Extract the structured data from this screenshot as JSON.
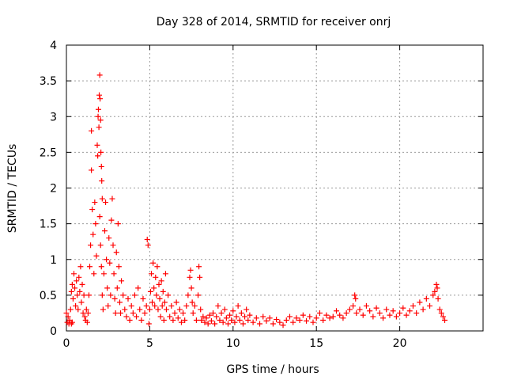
{
  "chart_data": {
    "type": "scatter",
    "title": "Day 328 of 2014, SRMTID for receiver onrj",
    "xlabel": "GPS time / hours",
    "ylabel": "SRMTID / TECUs",
    "xlim": [
      0,
      25
    ],
    "ylim": [
      0,
      4
    ],
    "xticks": [
      0,
      5,
      10,
      15,
      20
    ],
    "xtick_labels": [
      "0",
      "5",
      "10",
      "15",
      "20"
    ],
    "yticks": [
      0,
      0.5,
      1,
      1.5,
      2,
      2.5,
      3,
      3.5,
      4
    ],
    "ytick_labels": [
      "0",
      "0.5",
      "1",
      "1.5",
      "2",
      "2.5",
      "3",
      "3.5",
      "4"
    ],
    "grid": true,
    "marker": "+",
    "series": [
      {
        "name": "SRMTID",
        "color": "#ff0000",
        "points": [
          [
            0.0,
            0.25
          ],
          [
            0.05,
            0.12
          ],
          [
            0.1,
            0.2
          ],
          [
            0.15,
            0.1
          ],
          [
            0.2,
            0.15
          ],
          [
            0.25,
            0.3
          ],
          [
            0.3,
            0.1
          ],
          [
            0.35,
            0.12
          ],
          [
            0.3,
            0.55
          ],
          [
            0.35,
            0.65
          ],
          [
            0.4,
            0.45
          ],
          [
            0.45,
            0.8
          ],
          [
            0.5,
            0.6
          ],
          [
            0.55,
            0.35
          ],
          [
            0.6,
            0.7
          ],
          [
            0.65,
            0.5
          ],
          [
            0.7,
            0.3
          ],
          [
            0.75,
            0.75
          ],
          [
            0.8,
            0.55
          ],
          [
            0.85,
            0.9
          ],
          [
            0.9,
            0.4
          ],
          [
            0.95,
            0.65
          ],
          [
            1.0,
            0.25
          ],
          [
            1.05,
            0.5
          ],
          [
            1.1,
            0.2
          ],
          [
            1.15,
            0.15
          ],
          [
            1.2,
            0.3
          ],
          [
            1.25,
            0.12
          ],
          [
            1.3,
            0.25
          ],
          [
            1.35,
            0.5
          ],
          [
            1.4,
            0.9
          ],
          [
            1.45,
            1.2
          ],
          [
            1.5,
            2.8
          ],
          [
            1.5,
            2.25
          ],
          [
            1.55,
            1.7
          ],
          [
            1.6,
            1.35
          ],
          [
            1.65,
            0.8
          ],
          [
            1.7,
            1.8
          ],
          [
            1.75,
            1.5
          ],
          [
            1.8,
            1.05
          ],
          [
            1.85,
            2.6
          ],
          [
            1.88,
            2.45
          ],
          [
            1.9,
            3.0
          ],
          [
            1.92,
            3.1
          ],
          [
            1.95,
            2.85
          ],
          [
            1.97,
            3.3
          ],
          [
            2.0,
            3.58
          ],
          [
            2.02,
            3.25
          ],
          [
            2.05,
            2.95
          ],
          [
            2.07,
            2.5
          ],
          [
            2.1,
            2.3
          ],
          [
            2.12,
            2.1
          ],
          [
            2.15,
            1.85
          ],
          [
            2.0,
            1.6
          ],
          [
            2.05,
            1.2
          ],
          [
            2.1,
            0.9
          ],
          [
            2.15,
            0.5
          ],
          [
            2.2,
            0.3
          ],
          [
            2.25,
            0.8
          ],
          [
            2.3,
            1.4
          ],
          [
            2.35,
            1.8
          ],
          [
            2.4,
            1.0
          ],
          [
            2.45,
            0.6
          ],
          [
            2.5,
            0.35
          ],
          [
            2.55,
            1.3
          ],
          [
            2.6,
            0.95
          ],
          [
            2.65,
            0.5
          ],
          [
            2.7,
            1.55
          ],
          [
            2.75,
            1.85
          ],
          [
            2.8,
            1.2
          ],
          [
            2.85,
            0.8
          ],
          [
            2.9,
            0.45
          ],
          [
            2.95,
            0.25
          ],
          [
            3.0,
            1.1
          ],
          [
            3.05,
            0.6
          ],
          [
            3.1,
            1.5
          ],
          [
            3.15,
            0.9
          ],
          [
            3.2,
            0.4
          ],
          [
            3.25,
            0.25
          ],
          [
            3.3,
            0.7
          ],
          [
            3.4,
            0.5
          ],
          [
            3.5,
            0.3
          ],
          [
            3.6,
            0.2
          ],
          [
            3.7,
            0.45
          ],
          [
            3.8,
            0.15
          ],
          [
            3.9,
            0.35
          ],
          [
            4.0,
            0.25
          ],
          [
            4.1,
            0.5
          ],
          [
            4.2,
            0.2
          ],
          [
            4.3,
            0.6
          ],
          [
            4.4,
            0.3
          ],
          [
            4.5,
            0.15
          ],
          [
            4.6,
            0.45
          ],
          [
            4.7,
            0.25
          ],
          [
            4.8,
            0.35
          ],
          [
            4.85,
            1.28
          ],
          [
            4.9,
            1.2
          ],
          [
            4.95,
            0.1
          ],
          [
            5.0,
            0.3
          ],
          [
            5.05,
            0.55
          ],
          [
            5.1,
            0.8
          ],
          [
            5.15,
            0.4
          ],
          [
            5.2,
            0.95
          ],
          [
            5.25,
            0.6
          ],
          [
            5.3,
            0.35
          ],
          [
            5.35,
            0.75
          ],
          [
            5.4,
            0.5
          ],
          [
            5.45,
            0.9
          ],
          [
            5.5,
            0.3
          ],
          [
            5.55,
            0.65
          ],
          [
            5.6,
            0.45
          ],
          [
            5.65,
            0.2
          ],
          [
            5.7,
            0.7
          ],
          [
            5.75,
            0.35
          ],
          [
            5.8,
            0.55
          ],
          [
            5.85,
            0.15
          ],
          [
            5.9,
            0.4
          ],
          [
            5.95,
            0.8
          ],
          [
            6.0,
            0.3
          ],
          [
            6.1,
            0.5
          ],
          [
            6.2,
            0.2
          ],
          [
            6.3,
            0.35
          ],
          [
            6.4,
            0.15
          ],
          [
            6.5,
            0.25
          ],
          [
            6.6,
            0.4
          ],
          [
            6.7,
            0.18
          ],
          [
            6.8,
            0.3
          ],
          [
            6.9,
            0.12
          ],
          [
            7.0,
            0.25
          ],
          [
            7.1,
            0.15
          ],
          [
            7.2,
            0.35
          ],
          [
            7.3,
            0.5
          ],
          [
            7.4,
            0.75
          ],
          [
            7.45,
            0.85
          ],
          [
            7.5,
            0.6
          ],
          [
            7.55,
            0.4
          ],
          [
            7.6,
            0.25
          ],
          [
            7.7,
            0.35
          ],
          [
            7.8,
            0.15
          ],
          [
            7.9,
            0.5
          ],
          [
            7.95,
            0.9
          ],
          [
            8.0,
            0.75
          ],
          [
            8.05,
            0.3
          ],
          [
            8.1,
            0.15
          ],
          [
            8.2,
            0.2
          ],
          [
            8.3,
            0.12
          ],
          [
            8.4,
            0.18
          ],
          [
            8.5,
            0.1
          ],
          [
            8.6,
            0.22
          ],
          [
            8.7,
            0.14
          ],
          [
            8.8,
            0.25
          ],
          [
            8.9,
            0.1
          ],
          [
            9.0,
            0.2
          ],
          [
            9.1,
            0.35
          ],
          [
            9.2,
            0.15
          ],
          [
            9.3,
            0.25
          ],
          [
            9.4,
            0.12
          ],
          [
            9.5,
            0.3
          ],
          [
            9.6,
            0.18
          ],
          [
            9.7,
            0.1
          ],
          [
            9.8,
            0.22
          ],
          [
            9.9,
            0.15
          ],
          [
            10.0,
            0.28
          ],
          [
            10.1,
            0.12
          ],
          [
            10.2,
            0.2
          ],
          [
            10.3,
            0.35
          ],
          [
            10.4,
            0.15
          ],
          [
            10.5,
            0.25
          ],
          [
            10.6,
            0.1
          ],
          [
            10.7,
            0.2
          ],
          [
            10.8,
            0.3
          ],
          [
            10.9,
            0.15
          ],
          [
            11.0,
            0.22
          ],
          [
            11.2,
            0.12
          ],
          [
            11.4,
            0.18
          ],
          [
            11.6,
            0.1
          ],
          [
            11.8,
            0.2
          ],
          [
            12.0,
            0.14
          ],
          [
            12.2,
            0.18
          ],
          [
            12.4,
            0.1
          ],
          [
            12.6,
            0.16
          ],
          [
            12.8,
            0.12
          ],
          [
            13.0,
            0.08
          ],
          [
            13.2,
            0.15
          ],
          [
            13.4,
            0.2
          ],
          [
            13.6,
            0.12
          ],
          [
            13.8,
            0.18
          ],
          [
            14.0,
            0.15
          ],
          [
            14.2,
            0.22
          ],
          [
            14.4,
            0.14
          ],
          [
            14.6,
            0.2
          ],
          [
            14.8,
            0.12
          ],
          [
            15.0,
            0.18
          ],
          [
            15.2,
            0.25
          ],
          [
            15.4,
            0.15
          ],
          [
            15.6,
            0.22
          ],
          [
            15.8,
            0.18
          ],
          [
            16.0,
            0.2
          ],
          [
            16.2,
            0.28
          ],
          [
            16.4,
            0.22
          ],
          [
            16.6,
            0.18
          ],
          [
            16.8,
            0.25
          ],
          [
            17.0,
            0.3
          ],
          [
            17.2,
            0.35
          ],
          [
            17.3,
            0.5
          ],
          [
            17.35,
            0.45
          ],
          [
            17.4,
            0.25
          ],
          [
            17.6,
            0.3
          ],
          [
            17.8,
            0.22
          ],
          [
            18.0,
            0.35
          ],
          [
            18.2,
            0.28
          ],
          [
            18.4,
            0.2
          ],
          [
            18.6,
            0.32
          ],
          [
            18.8,
            0.25
          ],
          [
            19.0,
            0.18
          ],
          [
            19.2,
            0.3
          ],
          [
            19.4,
            0.22
          ],
          [
            19.6,
            0.28
          ],
          [
            19.8,
            0.2
          ],
          [
            20.0,
            0.25
          ],
          [
            20.2,
            0.32
          ],
          [
            20.4,
            0.22
          ],
          [
            20.6,
            0.28
          ],
          [
            20.8,
            0.35
          ],
          [
            21.0,
            0.25
          ],
          [
            21.2,
            0.4
          ],
          [
            21.4,
            0.3
          ],
          [
            21.6,
            0.45
          ],
          [
            21.8,
            0.35
          ],
          [
            22.0,
            0.5
          ],
          [
            22.1,
            0.55
          ],
          [
            22.2,
            0.65
          ],
          [
            22.25,
            0.6
          ],
          [
            22.3,
            0.45
          ],
          [
            22.4,
            0.3
          ],
          [
            22.5,
            0.25
          ],
          [
            22.6,
            0.2
          ],
          [
            22.7,
            0.15
          ]
        ]
      }
    ]
  }
}
